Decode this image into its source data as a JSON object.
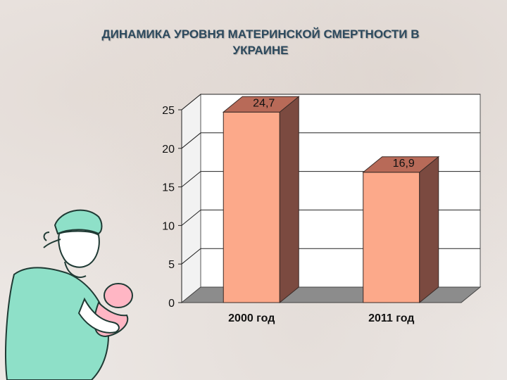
{
  "slide": {
    "title_line1": "ДИНАМИКА УРОВНЯ МАТЕРИНСКОЙ СМЕРТНОСТИ В",
    "title_line2": "УКРАИНЕ"
  },
  "chart_data": {
    "type": "bar",
    "title": "ДИНАМИКА УРОВНЯ МАТЕРИНСКОЙ СМЕРТНОСТИ В УКРАИНЕ",
    "categories": [
      "2000 год",
      "2011 год"
    ],
    "values": [
      24.7,
      16.9
    ],
    "value_labels": [
      "24,7",
      "16,9"
    ],
    "xlabel": "",
    "ylabel": "",
    "ylim": [
      0,
      25
    ],
    "yticks": [
      0,
      5,
      10,
      15,
      20,
      25
    ],
    "grid": true,
    "style": "3d",
    "colors": {
      "bar_front": "#fca98a",
      "bar_side": "#7b4a40",
      "bar_top": "#b86a58",
      "floor": "#8c8c8c",
      "wall": "#ffffff"
    }
  }
}
